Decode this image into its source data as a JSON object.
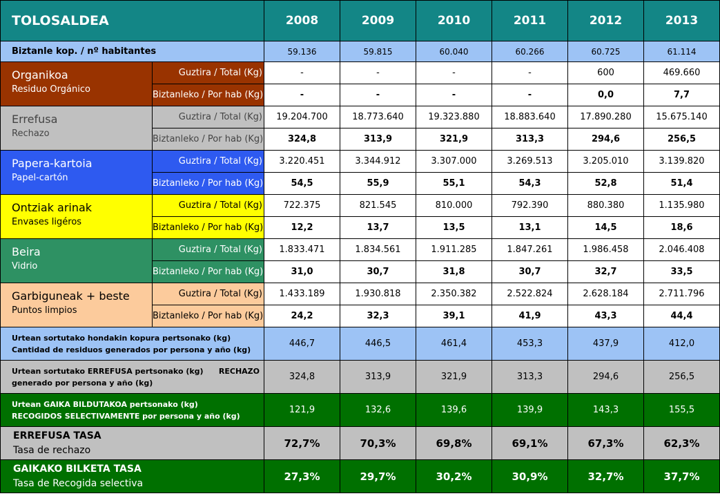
{
  "header": {
    "title": "TOLOSALDEA",
    "years": [
      "2008",
      "2009",
      "2010",
      "2011",
      "2012",
      "2013"
    ]
  },
  "population": {
    "label": "Biztanle kop. / nº habitantes",
    "values": [
      "59.136",
      "59.815",
      "60.040",
      "60.266",
      "60.725",
      "61.114"
    ]
  },
  "sublabels": {
    "total": "Guztira / Total (Kg)",
    "per_hab": "Biztanleko / Por hab (Kg)"
  },
  "categories": [
    {
      "name": "Organikoa",
      "sub": "Residuo Orgánico",
      "color": "#993300",
      "text_color": "#ffffff",
      "total": [
        "-",
        "-",
        "-",
        "-",
        "600",
        "469.660"
      ],
      "per_hab": [
        "-",
        "-",
        "-",
        "-",
        "0,0",
        "7,7"
      ]
    },
    {
      "name": "Errefusa",
      "sub": "Rechazo",
      "color": "#C0C0C0",
      "text_color": "#444444",
      "total": [
        "19.204.700",
        "18.773.640",
        "19.323.880",
        "18.883.640",
        "17.890.280",
        "15.675.140"
      ],
      "per_hab": [
        "324,8",
        "313,9",
        "321,9",
        "313,3",
        "294,6",
        "256,5"
      ]
    },
    {
      "name": "Papera-kartoia",
      "sub": "Papel-cartón",
      "color": "#2E5AF0",
      "text_color": "#ffffff",
      "total": [
        "3.220.451",
        "3.344.912",
        "3.307.000",
        "3.269.513",
        "3.205.010",
        "3.139.820"
      ],
      "per_hab": [
        "54,5",
        "55,9",
        "55,1",
        "54,3",
        "52,8",
        "51,4"
      ]
    },
    {
      "name": "Ontziak arinak",
      "sub": "Envases ligéros",
      "color": "#FFFF00",
      "text_color": "#000000",
      "total": [
        "722.375",
        "821.545",
        "810.000",
        "792.390",
        "880.380",
        "1.135.980"
      ],
      "per_hab": [
        "12,2",
        "13,7",
        "13,5",
        "13,1",
        "14,5",
        "18,6"
      ]
    },
    {
      "name": "Beira",
      "sub": "Vidrio",
      "color": "#2E9163",
      "text_color": "#ffffff",
      "total": [
        "1.833.471",
        "1.834.561",
        "1.911.285",
        "1.847.261",
        "1.986.458",
        "2.046.408"
      ],
      "per_hab": [
        "31,0",
        "30,7",
        "31,8",
        "30,7",
        "32,7",
        "33,5"
      ]
    },
    {
      "name": "Garbiguneak + beste",
      "sub": "Puntos limpios",
      "color": "#FCCB9C",
      "text_color": "#000000",
      "total": [
        "1.433.189",
        "1.930.818",
        "2.350.382",
        "2.522.824",
        "2.628.184",
        "2.711.796"
      ],
      "per_hab": [
        "24,2",
        "32,3",
        "39,1",
        "41,9",
        "43,3",
        "44,4"
      ]
    }
  ],
  "summary": {
    "generated": {
      "line1": "Urtean sortutako hondakin kopura pertsonako (kg)",
      "line2": "Cantidad de residuos generados por persona y año (kg)",
      "values": [
        "446,7",
        "446,5",
        "461,4",
        "453,3",
        "437,9",
        "412,0"
      ]
    },
    "rechazo": {
      "line1": "Urtean sortutako ERREFUSA pertsonako (kg)",
      "tag": "RECHAZO",
      "line2": "generado por persona y año (kg)",
      "values": [
        "324,8",
        "313,9",
        "321,9",
        "313,3",
        "294,6",
        "256,5"
      ]
    },
    "selective": {
      "line1": "Urtean GAIKA BILDUTAKOA pertsonako (kg)",
      "line2": "RECOGIDOS SELECTIVAMENTE por persona y año (kg)",
      "values": [
        "121,9",
        "132,6",
        "139,6",
        "139,9",
        "143,3",
        "155,5"
      ]
    }
  },
  "rates": {
    "rechazo": {
      "line1": "ERREFUSA TASA",
      "line2": "Tasa de rechazo",
      "values": [
        "72,7%",
        "70,3%",
        "69,8%",
        "69,1%",
        "67,3%",
        "62,3%"
      ]
    },
    "selective": {
      "line1": "GAIKAKO BILKETA TASA",
      "line2": "Tasa de Recogida selectiva",
      "values": [
        "27,3%",
        "29,7%",
        "30,2%",
        "30,9%",
        "32,7%",
        "37,7%"
      ]
    }
  }
}
